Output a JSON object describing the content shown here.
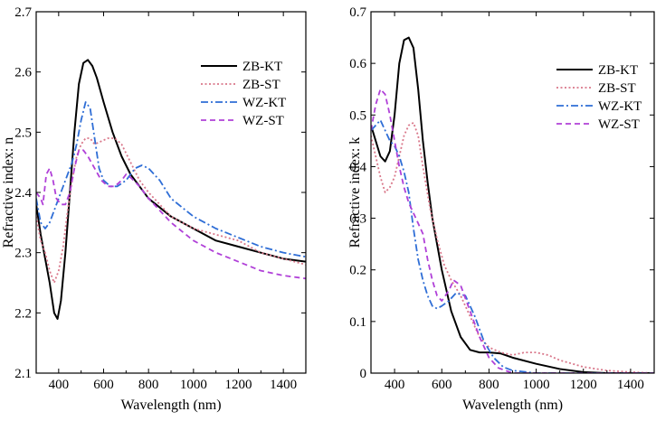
{
  "chart_data": [
    {
      "type": "line",
      "xlabel": "Wavelength (nm)",
      "ylabel": "Refractive index: n",
      "xlim": [
        300,
        1500
      ],
      "ylim": [
        2.1,
        2.7
      ],
      "x_ticks": [
        400,
        600,
        800,
        1000,
        1200,
        1400
      ],
      "y_ticks": [
        2.1,
        2.2,
        2.3,
        2.4,
        2.5,
        2.6,
        2.7
      ],
      "legend_position": "top-right",
      "series": [
        {
          "name": "ZB-KT",
          "color": "#000000",
          "dash": "solid",
          "points": [
            [
              300,
              2.38
            ],
            [
              320,
              2.33
            ],
            [
              340,
              2.29
            ],
            [
              360,
              2.25
            ],
            [
              380,
              2.2
            ],
            [
              395,
              2.19
            ],
            [
              410,
              2.22
            ],
            [
              430,
              2.3
            ],
            [
              450,
              2.4
            ],
            [
              470,
              2.5
            ],
            [
              490,
              2.58
            ],
            [
              510,
              2.615
            ],
            [
              530,
              2.62
            ],
            [
              550,
              2.61
            ],
            [
              570,
              2.59
            ],
            [
              600,
              2.55
            ],
            [
              640,
              2.5
            ],
            [
              680,
              2.46
            ],
            [
              720,
              2.43
            ],
            [
              760,
              2.41
            ],
            [
              800,
              2.39
            ],
            [
              900,
              2.36
            ],
            [
              1000,
              2.34
            ],
            [
              1100,
              2.32
            ],
            [
              1200,
              2.31
            ],
            [
              1300,
              2.3
            ],
            [
              1400,
              2.29
            ],
            [
              1500,
              2.285
            ]
          ]
        },
        {
          "name": "ZB-ST",
          "color": "#d9778a",
          "dash": "dot",
          "points": [
            [
              300,
              2.36
            ],
            [
              320,
              2.32
            ],
            [
              340,
              2.3
            ],
            [
              360,
              2.27
            ],
            [
              380,
              2.25
            ],
            [
              400,
              2.27
            ],
            [
              420,
              2.31
            ],
            [
              440,
              2.37
            ],
            [
              460,
              2.42
            ],
            [
              480,
              2.46
            ],
            [
              500,
              2.48
            ],
            [
              520,
              2.49
            ],
            [
              540,
              2.49
            ],
            [
              560,
              2.48
            ],
            [
              590,
              2.485
            ],
            [
              620,
              2.49
            ],
            [
              650,
              2.49
            ],
            [
              680,
              2.48
            ],
            [
              720,
              2.45
            ],
            [
              760,
              2.42
            ],
            [
              800,
              2.4
            ],
            [
              900,
              2.36
            ],
            [
              1000,
              2.34
            ],
            [
              1100,
              2.33
            ],
            [
              1200,
              2.32
            ],
            [
              1300,
              2.3
            ],
            [
              1400,
              2.29
            ],
            [
              1500,
              2.28
            ]
          ]
        },
        {
          "name": "WZ-KT",
          "color": "#2f6ed6",
          "dash": "dashdot",
          "points": [
            [
              300,
              2.39
            ],
            [
              320,
              2.35
            ],
            [
              340,
              2.34
            ],
            [
              360,
              2.35
            ],
            [
              380,
              2.37
            ],
            [
              400,
              2.39
            ],
            [
              420,
              2.41
            ],
            [
              440,
              2.43
            ],
            [
              460,
              2.45
            ],
            [
              480,
              2.48
            ],
            [
              500,
              2.52
            ],
            [
              520,
              2.55
            ],
            [
              540,
              2.54
            ],
            [
              560,
              2.49
            ],
            [
              580,
              2.44
            ],
            [
              600,
              2.42
            ],
            [
              630,
              2.41
            ],
            [
              660,
              2.41
            ],
            [
              700,
              2.42
            ],
            [
              740,
              2.44
            ],
            [
              770,
              2.445
            ],
            [
              800,
              2.44
            ],
            [
              850,
              2.42
            ],
            [
              900,
              2.39
            ],
            [
              1000,
              2.36
            ],
            [
              1100,
              2.34
            ],
            [
              1200,
              2.325
            ],
            [
              1300,
              2.31
            ],
            [
              1400,
              2.3
            ],
            [
              1500,
              2.293
            ]
          ]
        },
        {
          "name": "WZ-ST",
          "color": "#b040d8",
          "dash": "dash",
          "points": [
            [
              300,
              2.4
            ],
            [
              320,
              2.39
            ],
            [
              330,
              2.38
            ],
            [
              345,
              2.43
            ],
            [
              360,
              2.44
            ],
            [
              375,
              2.42
            ],
            [
              390,
              2.39
            ],
            [
              410,
              2.38
            ],
            [
              430,
              2.38
            ],
            [
              450,
              2.4
            ],
            [
              470,
              2.44
            ],
            [
              490,
              2.47
            ],
            [
              510,
              2.47
            ],
            [
              530,
              2.46
            ],
            [
              560,
              2.44
            ],
            [
              590,
              2.42
            ],
            [
              620,
              2.41
            ],
            [
              650,
              2.41
            ],
            [
              680,
              2.42
            ],
            [
              700,
              2.43
            ],
            [
              720,
              2.425
            ],
            [
              760,
              2.41
            ],
            [
              800,
              2.39
            ],
            [
              900,
              2.35
            ],
            [
              1000,
              2.32
            ],
            [
              1100,
              2.3
            ],
            [
              1200,
              2.285
            ],
            [
              1300,
              2.27
            ],
            [
              1400,
              2.262
            ],
            [
              1500,
              2.257
            ]
          ]
        }
      ]
    },
    {
      "type": "line",
      "xlabel": "Wavelength (nm)",
      "ylabel": "Refractive index: k",
      "xlim": [
        300,
        1500
      ],
      "ylim": [
        0,
        0.7
      ],
      "x_ticks": [
        400,
        600,
        800,
        1000,
        1200,
        1400
      ],
      "y_ticks": [
        0,
        0.1,
        0.2,
        0.3,
        0.4,
        0.5,
        0.6,
        0.7
      ],
      "y_tick_labels": [
        "0",
        "0.1",
        "0.2",
        "0.3",
        "0.4",
        "0.5",
        "0.6",
        "0.7"
      ],
      "legend_position": "top-right",
      "series": [
        {
          "name": "ZB-KT",
          "color": "#000000",
          "dash": "solid",
          "points": [
            [
              300,
              0.48
            ],
            [
              320,
              0.45
            ],
            [
              340,
              0.42
            ],
            [
              360,
              0.41
            ],
            [
              380,
              0.43
            ],
            [
              400,
              0.5
            ],
            [
              420,
              0.6
            ],
            [
              440,
              0.645
            ],
            [
              460,
              0.65
            ],
            [
              480,
              0.63
            ],
            [
              500,
              0.55
            ],
            [
              520,
              0.45
            ],
            [
              540,
              0.37
            ],
            [
              560,
              0.3
            ],
            [
              600,
              0.2
            ],
            [
              640,
              0.12
            ],
            [
              680,
              0.07
            ],
            [
              720,
              0.045
            ],
            [
              760,
              0.04
            ],
            [
              800,
              0.04
            ],
            [
              850,
              0.038
            ],
            [
              900,
              0.03
            ],
            [
              1000,
              0.018
            ],
            [
              1100,
              0.008
            ],
            [
              1200,
              0.002
            ],
            [
              1300,
              0
            ],
            [
              1400,
              0
            ],
            [
              1500,
              0
            ]
          ]
        },
        {
          "name": "ZB-ST",
          "color": "#d9778a",
          "dash": "dot",
          "points": [
            [
              300,
              0.46
            ],
            [
              320,
              0.42
            ],
            [
              340,
              0.38
            ],
            [
              360,
              0.35
            ],
            [
              380,
              0.36
            ],
            [
              400,
              0.38
            ],
            [
              420,
              0.42
            ],
            [
              440,
              0.46
            ],
            [
              460,
              0.48
            ],
            [
              480,
              0.485
            ],
            [
              500,
              0.46
            ],
            [
              520,
              0.4
            ],
            [
              550,
              0.32
            ],
            [
              580,
              0.26
            ],
            [
              610,
              0.21
            ],
            [
              640,
              0.18
            ],
            [
              680,
              0.15
            ],
            [
              720,
              0.11
            ],
            [
              760,
              0.07
            ],
            [
              800,
              0.05
            ],
            [
              850,
              0.04
            ],
            [
              900,
              0.035
            ],
            [
              950,
              0.04
            ],
            [
              1000,
              0.04
            ],
            [
              1050,
              0.035
            ],
            [
              1100,
              0.025
            ],
            [
              1200,
              0.012
            ],
            [
              1300,
              0.005
            ],
            [
              1400,
              0.002
            ],
            [
              1500,
              0
            ]
          ]
        },
        {
          "name": "WZ-KT",
          "color": "#2f6ed6",
          "dash": "dashdot",
          "points": [
            [
              300,
              0.47
            ],
            [
              320,
              0.48
            ],
            [
              340,
              0.49
            ],
            [
              360,
              0.47
            ],
            [
              380,
              0.45
            ],
            [
              400,
              0.44
            ],
            [
              420,
              0.42
            ],
            [
              440,
              0.39
            ],
            [
              460,
              0.35
            ],
            [
              480,
              0.28
            ],
            [
              500,
              0.22
            ],
            [
              520,
              0.18
            ],
            [
              540,
              0.15
            ],
            [
              560,
              0.13
            ],
            [
              580,
              0.125
            ],
            [
              600,
              0.13
            ],
            [
              630,
              0.14
            ],
            [
              660,
              0.155
            ],
            [
              700,
              0.15
            ],
            [
              740,
              0.11
            ],
            [
              780,
              0.06
            ],
            [
              820,
              0.03
            ],
            [
              860,
              0.012
            ],
            [
              900,
              0.005
            ],
            [
              1000,
              0
            ],
            [
              1200,
              0
            ],
            [
              1400,
              0
            ],
            [
              1500,
              0
            ]
          ]
        },
        {
          "name": "WZ-ST",
          "color": "#b040d8",
          "dash": "dash",
          "points": [
            [
              300,
              0.47
            ],
            [
              320,
              0.52
            ],
            [
              340,
              0.55
            ],
            [
              360,
              0.54
            ],
            [
              380,
              0.5
            ],
            [
              400,
              0.45
            ],
            [
              420,
              0.4
            ],
            [
              440,
              0.36
            ],
            [
              460,
              0.33
            ],
            [
              480,
              0.31
            ],
            [
              500,
              0.29
            ],
            [
              520,
              0.27
            ],
            [
              540,
              0.22
            ],
            [
              560,
              0.18
            ],
            [
              580,
              0.15
            ],
            [
              600,
              0.14
            ],
            [
              630,
              0.16
            ],
            [
              650,
              0.18
            ],
            [
              680,
              0.17
            ],
            [
              720,
              0.12
            ],
            [
              760,
              0.07
            ],
            [
              800,
              0.03
            ],
            [
              840,
              0.01
            ],
            [
              900,
              0
            ],
            [
              1000,
              0
            ],
            [
              1200,
              0
            ],
            [
              1400,
              0
            ],
            [
              1500,
              0
            ]
          ]
        }
      ]
    }
  ]
}
